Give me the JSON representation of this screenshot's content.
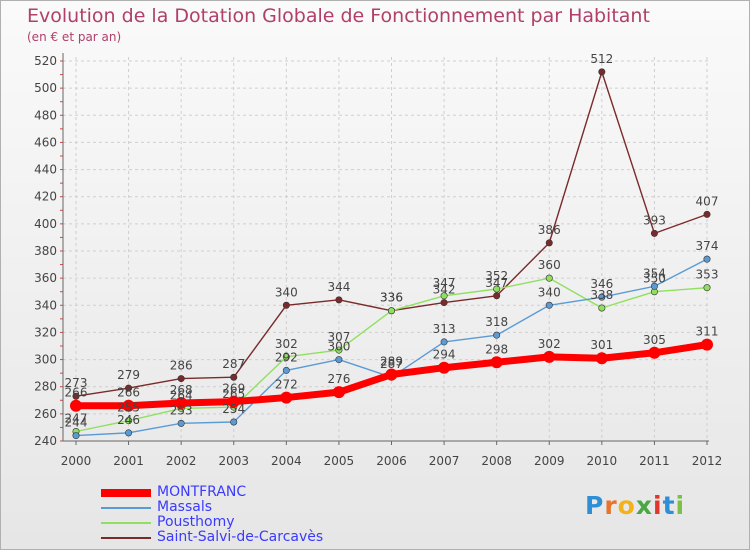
{
  "title": "Evolution de la Dotation Globale de Fonctionnement par Habitant",
  "subtitle": "(en € et par an)",
  "logo": {
    "text": "Proxiti",
    "letters": [
      "P",
      "r",
      "o",
      "x",
      "i",
      "t",
      "i"
    ],
    "colors": [
      "#2e8fd6",
      "#e8742a",
      "#f2b21b",
      "#4aa844",
      "#e0362c",
      "#2e8fd6",
      "#7cc04a"
    ]
  },
  "colors": {
    "title": "#b0406a",
    "axis": "#555555",
    "label": "#444444"
  },
  "chart_data": {
    "type": "line",
    "title": "Evolution de la Dotation Globale de Fonctionnement par Habitant",
    "xlabel": "",
    "ylabel": "(en € et par an)",
    "ylim": [
      240,
      520
    ],
    "yticks": [
      240,
      260,
      280,
      300,
      320,
      340,
      360,
      380,
      400,
      420,
      440,
      460,
      480,
      500,
      520
    ],
    "x": [
      "2000",
      "2001",
      "2002",
      "2003",
      "2004",
      "2005",
      "2006",
      "2007",
      "2008",
      "2009",
      "2010",
      "2011",
      "2012"
    ],
    "series": [
      {
        "name": "MONTFRANC",
        "color": "#ff0000",
        "values": [
          266,
          266,
          268,
          269,
          272,
          276,
          289,
          294,
          298,
          302,
          301,
          305,
          311
        ]
      },
      {
        "name": "Massals",
        "color": "#5b9bd5",
        "values": [
          244,
          246,
          253,
          254,
          292,
          300,
          287,
          313,
          318,
          340,
          346,
          354,
          374
        ]
      },
      {
        "name": "Pousthomy",
        "color": "#90e060",
        "values": [
          247,
          255,
          264,
          265,
          302,
          307,
          336,
          347,
          352,
          360,
          338,
          350,
          353
        ]
      },
      {
        "name": "Saint-Salvi-de-Carcavès",
        "color": "#7a2a2a",
        "values": [
          273,
          279,
          286,
          287,
          340,
          344,
          336,
          342,
          347,
          386,
          512,
          393,
          407
        ]
      }
    ]
  }
}
